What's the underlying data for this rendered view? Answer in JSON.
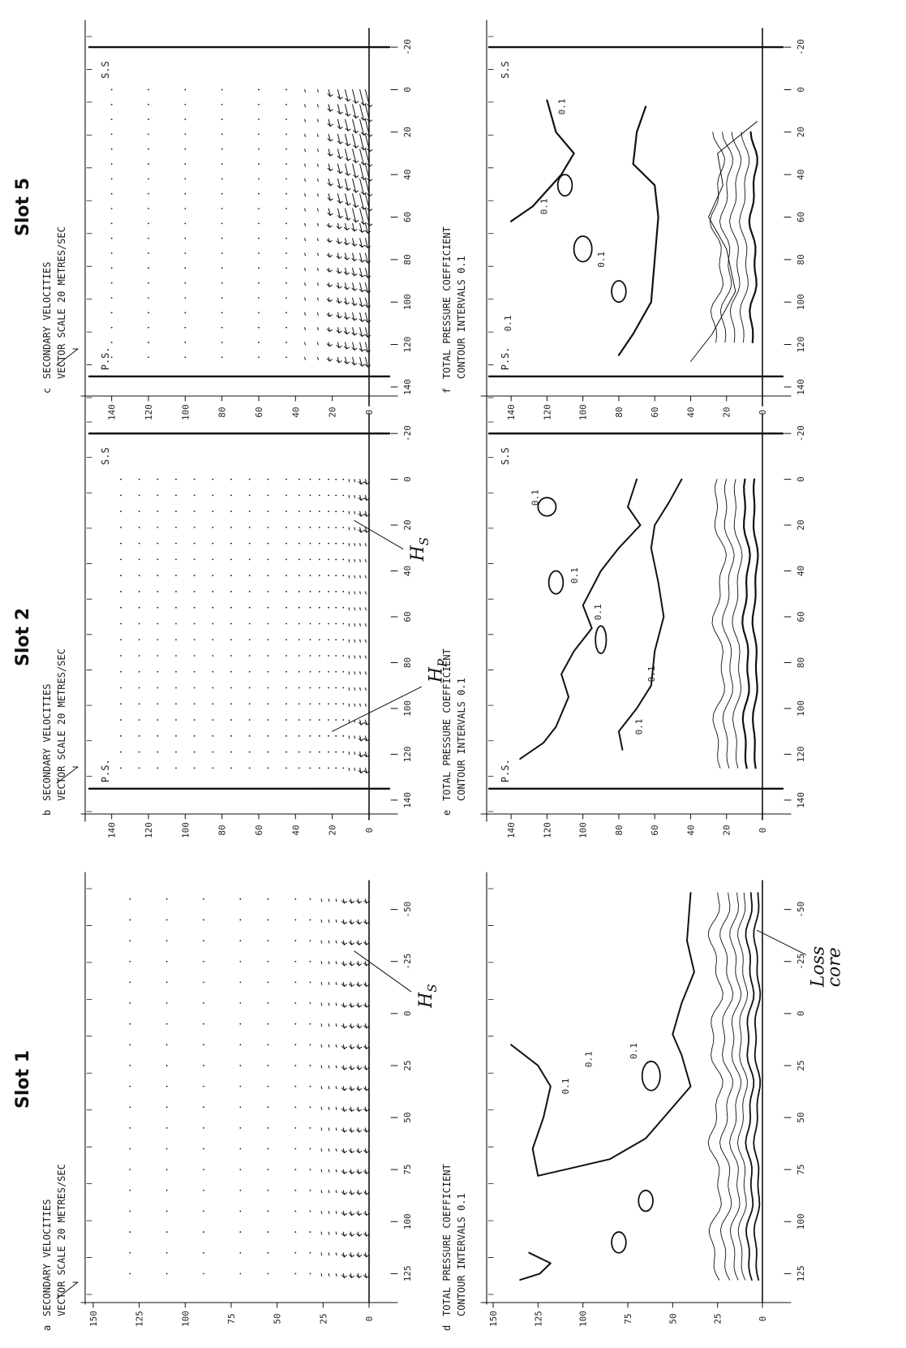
{
  "slot_titles": [
    "Slot 1",
    "Slot 2",
    "Slot 5"
  ],
  "panels": {
    "a": {
      "letter": "a",
      "line1": "SECONDARY VELOCITIES",
      "line2": "VECTOR SCALE 20 METRES/SEC"
    },
    "b": {
      "letter": "b",
      "line1": "SECONDARY VELOCITIES",
      "line2": "VECTOR SCALE 20 METRES/SEC"
    },
    "c": {
      "letter": "c",
      "line1": "SECONDARY VELOCITIES",
      "line2": "VECTOR SCALE 20 METRES/SEC"
    },
    "d": {
      "letter": "d",
      "line1": "TOTAL PRESSURE COEFFICIENT",
      "line2": "CONTOUR INTERVALS 0.1"
    },
    "e": {
      "letter": "e",
      "line1": "TOTAL PRESSURE COEFFICIENT",
      "line2": "CONTOUR INTERVALS 0.1"
    },
    "f": {
      "letter": "f",
      "line1": "TOTAL PRESSURE COEFFICIENT",
      "line2": "CONTOUR INTERVALS 0.1"
    }
  },
  "edge_labels": {
    "ss": "S.S",
    "ps": "P.S."
  },
  "annotations": {
    "hs": "H",
    "hs_sub": "S",
    "hp": "H",
    "hp_sub": "P",
    "loss_core_1": "Loss",
    "loss_core_2": "core"
  },
  "contour_label": "0.1",
  "chart_data": [
    {
      "type": "vector-field",
      "panel": "a",
      "slot": "Slot 1",
      "x_ticks": [
        "-50",
        "-25",
        "0",
        "25",
        "50",
        "75",
        "100",
        "125"
      ],
      "y_ticks": [
        "0",
        "25",
        "50",
        "75",
        "100",
        "125",
        "150"
      ],
      "xlim": [
        -60,
        135
      ],
      "ylim": [
        0,
        150
      ],
      "vector_scale": "20 METRES/SEC"
    },
    {
      "type": "vector-field",
      "panel": "b",
      "slot": "Slot 2",
      "x_ticks": [
        "-20",
        "0",
        "20",
        "40",
        "60",
        "80",
        "100",
        "120",
        "140"
      ],
      "y_ticks": [
        "0",
        "20",
        "40",
        "60",
        "80",
        "100",
        "120",
        "140"
      ],
      "xlim": [
        -20,
        140
      ],
      "ylim": [
        0,
        150
      ],
      "vector_scale": "20 METRES/SEC"
    },
    {
      "type": "vector-field",
      "panel": "c",
      "slot": "Slot 5",
      "x_ticks": [
        "-20",
        "0",
        "20",
        "40",
        "60",
        "80",
        "100",
        "120",
        "140"
      ],
      "y_ticks": [
        "0",
        "20",
        "40",
        "60",
        "80",
        "100",
        "120",
        "140"
      ],
      "xlim": [
        -20,
        140
      ],
      "ylim": [
        0,
        150
      ],
      "vector_scale": "20 METRES/SEC"
    },
    {
      "type": "contour",
      "panel": "d",
      "slot": "Slot 1",
      "x_ticks": [
        "-50",
        "-25",
        "0",
        "25",
        "50",
        "75",
        "100",
        "125"
      ],
      "y_ticks": [
        "0",
        "25",
        "50",
        "75",
        "100",
        "125",
        "150"
      ],
      "xlim": [
        -60,
        135
      ],
      "ylim": [
        0,
        150
      ],
      "contour_interval": 0.1
    },
    {
      "type": "contour",
      "panel": "e",
      "slot": "Slot 2",
      "x_ticks": [
        "-20",
        "0",
        "20",
        "40",
        "60",
        "80",
        "100",
        "120",
        "140"
      ],
      "y_ticks": [
        "0",
        "20",
        "40",
        "60",
        "80",
        "100",
        "120",
        "140"
      ],
      "xlim": [
        -20,
        140
      ],
      "ylim": [
        0,
        150
      ],
      "contour_interval": 0.1
    },
    {
      "type": "contour",
      "panel": "f",
      "slot": "Slot 5",
      "x_ticks": [
        "-20",
        "0",
        "20",
        "40",
        "60",
        "80",
        "100",
        "120",
        "140"
      ],
      "y_ticks": [
        "0",
        "20",
        "40",
        "60",
        "80",
        "100",
        "120",
        "140"
      ],
      "xlim": [
        -20,
        140
      ],
      "ylim": [
        0,
        150
      ],
      "contour_interval": 0.1
    }
  ]
}
